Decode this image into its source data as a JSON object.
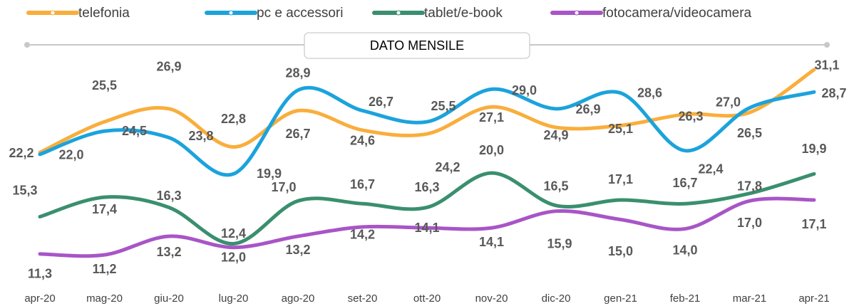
{
  "chart_data": {
    "type": "line",
    "title": "DATO MENSILE",
    "categories": [
      "apr-20",
      "mag-20",
      "giu-20",
      "lug-20",
      "ago-20",
      "set-20",
      "ott-20",
      "nov-20",
      "dic-20",
      "gen-21",
      "feb-21",
      "mar-21",
      "apr-21"
    ],
    "ylim": [
      8,
      34
    ],
    "series": [
      {
        "name": "telefonia",
        "color": "#f9ae3c",
        "values": [
          22.2,
          25.5,
          26.9,
          22.8,
          26.7,
          24.6,
          24.2,
          27.1,
          24.9,
          25.1,
          26.3,
          26.5,
          31.1
        ],
        "value_labels": [
          "22,2",
          "25,5",
          "26,9",
          "22,8",
          "26,7",
          "24,6",
          "24,2",
          "27,1",
          "24,9",
          "25,1",
          "26,3",
          "26,5",
          "31,1"
        ]
      },
      {
        "name": "pc e accessori",
        "color": "#1ba3dc",
        "values": [
          22.0,
          24.5,
          23.8,
          19.9,
          28.9,
          26.7,
          25.5,
          29.0,
          26.9,
          28.6,
          22.4,
          27.0,
          28.7
        ],
        "value_labels": [
          "22,0",
          "24,5",
          "23,8",
          "19,9",
          "28,9",
          "26,7",
          "25,5",
          "29,0",
          "26,9",
          "28,6",
          "22,4",
          "27,0",
          "28,7"
        ]
      },
      {
        "name": "tablet/e-book",
        "color": "#3a8f6e",
        "values": [
          15.3,
          17.4,
          16.3,
          12.4,
          17.0,
          16.7,
          16.3,
          20.0,
          16.5,
          17.1,
          16.7,
          17.8,
          19.9
        ],
        "value_labels": [
          "15,3",
          "17,4",
          "16,3",
          "12,4",
          "17,0",
          "16,7",
          "16,3",
          "20,0",
          "16,5",
          "17,1",
          "16,7",
          "17,8",
          "19,9"
        ]
      },
      {
        "name": "fotocamera/videocamera",
        "color": "#a855c7",
        "values": [
          11.3,
          11.2,
          13.2,
          12.0,
          13.2,
          14.2,
          14.1,
          14.1,
          15.9,
          15.0,
          14.0,
          17.0,
          17.1
        ],
        "value_labels": [
          "11,3",
          "11,2",
          "13,2",
          "12,0",
          "13,2",
          "14,2",
          "14,1",
          "14,1",
          "15,9",
          "15,0",
          "14,0",
          "17,0",
          "17,1"
        ]
      }
    ]
  }
}
